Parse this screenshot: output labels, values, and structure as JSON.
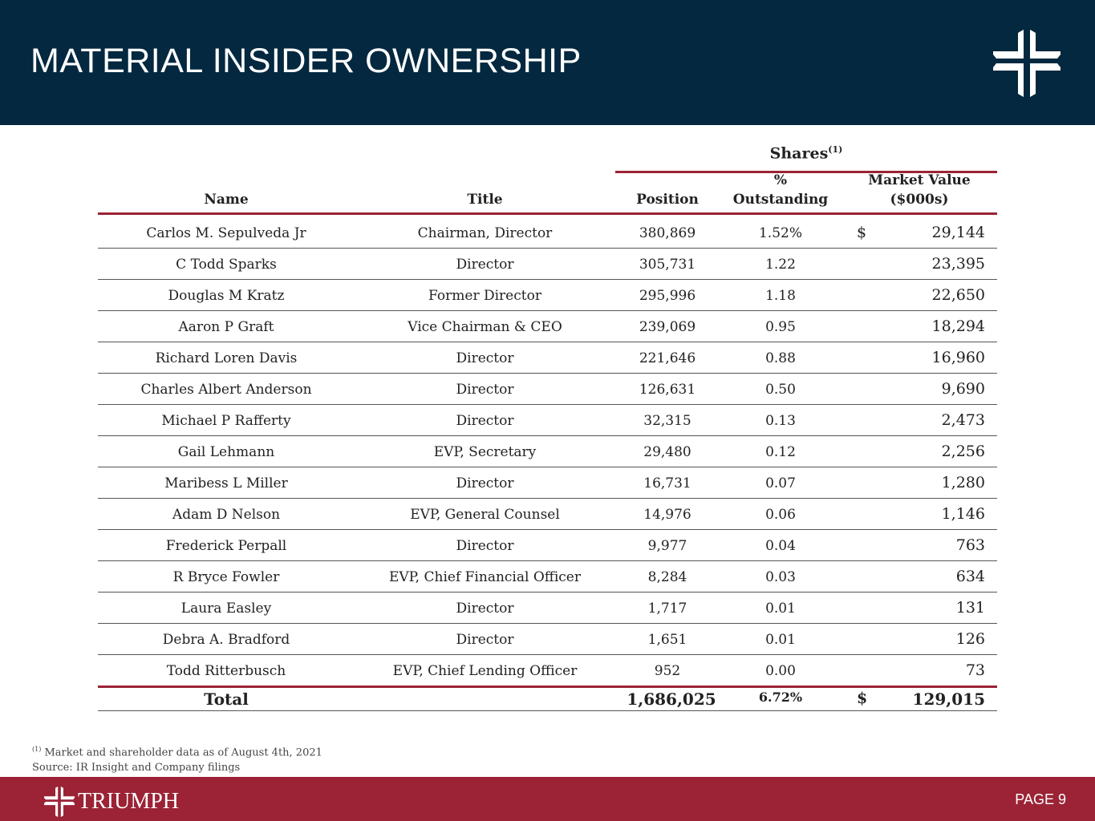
{
  "header": {
    "title": "MATERIAL INSIDER OWNERSHIP"
  },
  "table": {
    "group_header": "Shares",
    "group_note": "(1)",
    "columns": {
      "name": "Name",
      "title": "Title",
      "position": "Position",
      "pct_line1": "%",
      "pct_line2": "Outstanding",
      "mv_line1": "Market Value",
      "mv_line2": "($000s)"
    },
    "rows": [
      {
        "name": "Carlos M. Sepulveda Jr",
        "title": "Chairman, Director",
        "position": "380,869",
        "pct": "1.52%",
        "dollar": "$",
        "mv": "29,144"
      },
      {
        "name": "C Todd Sparks",
        "title": "Director",
        "position": "305,731",
        "pct": "1.22",
        "dollar": "",
        "mv": "23,395"
      },
      {
        "name": "Douglas M Kratz",
        "title": "Former Director",
        "position": "295,996",
        "pct": "1.18",
        "dollar": "",
        "mv": "22,650"
      },
      {
        "name": "Aaron P Graft",
        "title": "Vice Chairman & CEO",
        "position": "239,069",
        "pct": "0.95",
        "dollar": "",
        "mv": "18,294"
      },
      {
        "name": "Richard Loren Davis",
        "title": "Director",
        "position": "221,646",
        "pct": "0.88",
        "dollar": "",
        "mv": "16,960"
      },
      {
        "name": "Charles Albert Anderson",
        "title": "Director",
        "position": "126,631",
        "pct": "0.50",
        "dollar": "",
        "mv": "9,690"
      },
      {
        "name": "Michael P Rafferty",
        "title": "Director",
        "position": "32,315",
        "pct": "0.13",
        "dollar": "",
        "mv": "2,473"
      },
      {
        "name": "Gail Lehmann",
        "title": "EVP, Secretary",
        "position": "29,480",
        "pct": "0.12",
        "dollar": "",
        "mv": "2,256"
      },
      {
        "name": "Maribess L Miller",
        "title": "Director",
        "position": "16,731",
        "pct": "0.07",
        "dollar": "",
        "mv": "1,280"
      },
      {
        "name": "Adam D Nelson",
        "title": "EVP, General Counsel",
        "position": "14,976",
        "pct": "0.06",
        "dollar": "",
        "mv": "1,146"
      },
      {
        "name": "Frederick Perpall",
        "title": "Director",
        "position": "9,977",
        "pct": "0.04",
        "dollar": "",
        "mv": "763"
      },
      {
        "name": "R Bryce Fowler",
        "title": "EVP, Chief Financial Officer",
        "position": "8,284",
        "pct": "0.03",
        "dollar": "",
        "mv": "634"
      },
      {
        "name": "Laura Easley",
        "title": "Director",
        "position": "1,717",
        "pct": "0.01",
        "dollar": "",
        "mv": "131"
      },
      {
        "name": "Debra A. Bradford",
        "title": "Director",
        "position": "1,651",
        "pct": "0.01",
        "dollar": "",
        "mv": "126"
      },
      {
        "name": "Todd Ritterbusch",
        "title": "EVP, Chief Lending Officer",
        "position": "952",
        "pct": "0.00",
        "dollar": "",
        "mv": "73"
      }
    ],
    "total": {
      "label": "Total",
      "position": "1,686,025",
      "pct": "6.72%",
      "dollar": "$",
      "mv": "129,015"
    }
  },
  "notes": {
    "note_mark": "(1)",
    "note": "Market and shareholder data as of August 4th, 2021",
    "source": "Source: IR Insight and Company filings"
  },
  "footer": {
    "brand": "TRIUMPH",
    "page": "PAGE 9"
  }
}
